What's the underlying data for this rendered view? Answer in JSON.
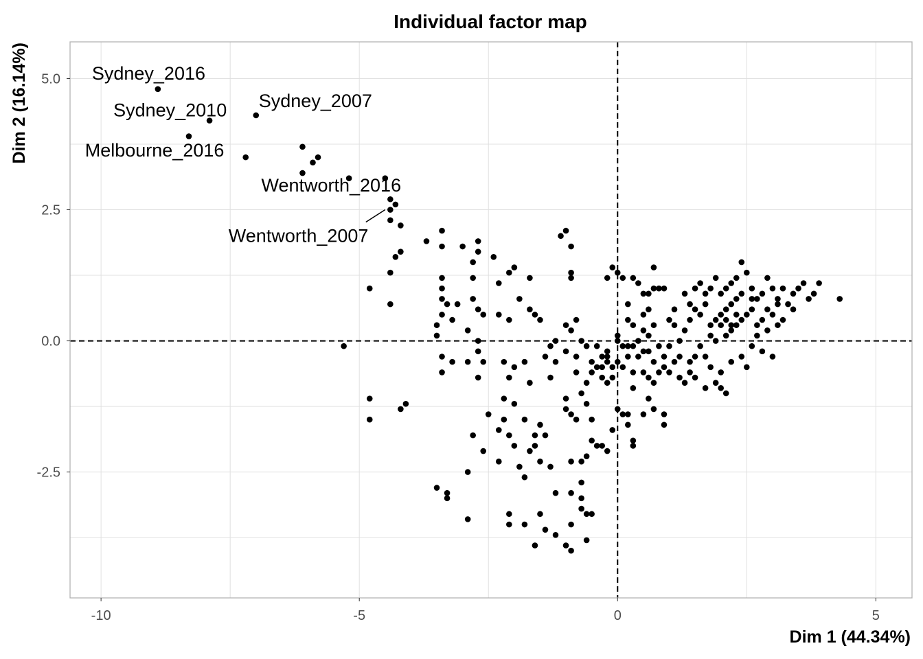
{
  "chart_data": {
    "type": "scatter",
    "title": "Individual factor map",
    "xlabel": "Dim 1 (44.34%)",
    "ylabel": "Dim 2 (16.14%)",
    "xlim": [
      -10.6,
      5.7
    ],
    "ylim": [
      -4.9,
      5.7
    ],
    "x_ticks": [
      -10,
      -5,
      0,
      5
    ],
    "x_tick_labels": [
      "-10",
      "-5",
      "0",
      "5"
    ],
    "y_ticks": [
      -2.5,
      0,
      2.5,
      5
    ],
    "y_tick_labels": [
      "-2.5",
      "0.0",
      "2.5",
      "5.0"
    ],
    "grid": true,
    "reference_lines": {
      "x": 0,
      "y": 0,
      "style": "dashed"
    },
    "point_color": "#000000",
    "labeled_points": [
      {
        "label": "Sydney_2016",
        "x": -8.9,
        "y": 4.8
      },
      {
        "label": "Sydney_2010",
        "x": -7.9,
        "y": 4.2
      },
      {
        "label": "Sydney_2007",
        "x": -7.0,
        "y": 4.3
      },
      {
        "label": "Melbourne_2016",
        "x": -7.2,
        "y": 3.5
      },
      {
        "label": "Wentworth_2016",
        "x": -6.1,
        "y": 3.2
      },
      {
        "label": "Wentworth_2007",
        "x": -4.5,
        "y": 2.5
      }
    ],
    "points": [
      [
        -8.9,
        4.8
      ],
      [
        -7.9,
        4.2
      ],
      [
        -7.0,
        4.3
      ],
      [
        -8.3,
        3.9
      ],
      [
        -7.2,
        3.5
      ],
      [
        -6.1,
        3.7
      ],
      [
        -5.8,
        3.5
      ],
      [
        -5.9,
        3.4
      ],
      [
        -6.1,
        3.2
      ],
      [
        -5.2,
        3.1
      ],
      [
        -4.5,
        3.1
      ],
      [
        -4.4,
        2.7
      ],
      [
        -4.3,
        2.6
      ],
      [
        -4.4,
        2.5
      ],
      [
        -4.4,
        2.3
      ],
      [
        -4.2,
        2.2
      ],
      [
        -3.7,
        1.9
      ],
      [
        -4.2,
        1.7
      ],
      [
        -4.3,
        1.6
      ],
      [
        -4.4,
        1.3
      ],
      [
        -4.8,
        1.0
      ],
      [
        -4.4,
        0.7
      ],
      [
        -5.3,
        -0.1
      ],
      [
        -3.4,
        2.1
      ],
      [
        -3.4,
        1.8
      ],
      [
        -3.4,
        1.2
      ],
      [
        -3.4,
        1.0
      ],
      [
        -3.4,
        0.8
      ],
      [
        -3.4,
        0.5
      ],
      [
        -3.5,
        0.3
      ],
      [
        -3.5,
        0.1
      ],
      [
        -3.3,
        0.7
      ],
      [
        -3.1,
        0.7
      ],
      [
        -3.2,
        0.4
      ],
      [
        -3.4,
        -0.3
      ],
      [
        -3.4,
        -0.6
      ],
      [
        -3.2,
        -0.4
      ],
      [
        -3.0,
        1.8
      ],
      [
        -2.7,
        1.9
      ],
      [
        -2.7,
        1.7
      ],
      [
        -2.8,
        1.5
      ],
      [
        -2.8,
        1.2
      ],
      [
        -2.8,
        0.8
      ],
      [
        -2.7,
        0.6
      ],
      [
        -2.6,
        0.5
      ],
      [
        -2.9,
        0.2
      ],
      [
        -2.7,
        0.0
      ],
      [
        -2.7,
        -0.2
      ],
      [
        -2.9,
        -0.4
      ],
      [
        -2.6,
        -0.4
      ],
      [
        -2.7,
        -0.7
      ],
      [
        -2.4,
        1.6
      ],
      [
        -2.3,
        1.1
      ],
      [
        -2.1,
        1.3
      ],
      [
        -2.0,
        1.4
      ],
      [
        -2.3,
        0.5
      ],
      [
        -2.1,
        0.4
      ],
      [
        -1.9,
        0.8
      ],
      [
        -1.7,
        1.2
      ],
      [
        -1.7,
        0.6
      ],
      [
        -1.6,
        0.5
      ],
      [
        -1.5,
        0.4
      ],
      [
        -2.2,
        -0.4
      ],
      [
        -2.0,
        -0.5
      ],
      [
        -2.1,
        -0.7
      ],
      [
        -1.8,
        -0.4
      ],
      [
        -1.7,
        -0.8
      ],
      [
        -1.4,
        -0.3
      ],
      [
        -1.3,
        -0.1
      ],
      [
        -1.3,
        -0.7
      ],
      [
        -1.2,
        -0.4
      ],
      [
        -1.0,
        0.3
      ],
      [
        -0.9,
        0.2
      ],
      [
        -0.8,
        0.4
      ],
      [
        -1.0,
        -0.2
      ],
      [
        -1.2,
        0.0
      ],
      [
        -0.8,
        -0.3
      ],
      [
        -0.8,
        -0.6
      ],
      [
        -1.0,
        2.1
      ],
      [
        -1.1,
        2.0
      ],
      [
        -0.9,
        1.8
      ],
      [
        -0.9,
        1.3
      ],
      [
        -0.9,
        1.2
      ],
      [
        -0.7,
        0.0
      ],
      [
        -0.6,
        -0.1
      ],
      [
        -0.5,
        -0.4
      ],
      [
        -0.5,
        -0.6
      ],
      [
        -0.4,
        -0.5
      ],
      [
        -0.3,
        -0.5
      ],
      [
        -0.3,
        -0.7
      ],
      [
        -0.2,
        -0.4
      ],
      [
        -0.2,
        -0.8
      ],
      [
        -0.6,
        -0.8
      ],
      [
        -0.7,
        -1.0
      ],
      [
        -0.6,
        -1.2
      ],
      [
        -0.8,
        -1.5
      ],
      [
        -1.0,
        -1.1
      ],
      [
        -1.0,
        -1.3
      ],
      [
        -0.9,
        -1.4
      ],
      [
        -0.5,
        -1.5
      ],
      [
        -0.5,
        -1.9
      ],
      [
        -0.4,
        -2.0
      ],
      [
        -0.6,
        -2.2
      ],
      [
        -0.7,
        -2.3
      ],
      [
        -0.9,
        -2.3
      ],
      [
        -0.3,
        -2.0
      ],
      [
        -0.2,
        -2.1
      ],
      [
        -0.9,
        -2.9
      ],
      [
        -0.7,
        -2.7
      ],
      [
        -0.7,
        -3.0
      ],
      [
        -0.7,
        -3.2
      ],
      [
        -0.6,
        -3.3
      ],
      [
        -0.5,
        -3.3
      ],
      [
        -0.9,
        -3.5
      ],
      [
        -1.2,
        -3.7
      ],
      [
        -1.0,
        -3.9
      ],
      [
        -0.9,
        -4.0
      ],
      [
        -0.6,
        -3.8
      ],
      [
        -1.2,
        -2.9
      ],
      [
        -1.5,
        -3.3
      ],
      [
        -1.4,
        -3.6
      ],
      [
        -1.6,
        -3.9
      ],
      [
        -1.8,
        -3.5
      ],
      [
        -2.1,
        -3.3
      ],
      [
        -2.1,
        -3.5
      ],
      [
        -1.8,
        -2.6
      ],
      [
        -1.9,
        -2.4
      ],
      [
        -1.7,
        -2.1
      ],
      [
        -1.6,
        -2.0
      ],
      [
        -1.5,
        -2.3
      ],
      [
        -1.3,
        -2.4
      ],
      [
        -2.0,
        -2.0
      ],
      [
        -2.1,
        -1.8
      ],
      [
        -2.3,
        -1.7
      ],
      [
        -2.2,
        -1.5
      ],
      [
        -2.2,
        -1.1
      ],
      [
        -2.0,
        -1.2
      ],
      [
        -1.8,
        -1.5
      ],
      [
        -1.5,
        -1.6
      ],
      [
        -1.4,
        -1.8
      ],
      [
        -1.6,
        -1.8
      ],
      [
        -2.3,
        -2.3
      ],
      [
        -2.6,
        -2.1
      ],
      [
        -2.5,
        -1.4
      ],
      [
        -2.8,
        -1.8
      ],
      [
        -2.9,
        -2.5
      ],
      [
        -2.9,
        -3.4
      ],
      [
        -3.3,
        -2.9
      ],
      [
        -3.3,
        -3.0
      ],
      [
        -3.5,
        -2.8
      ],
      [
        -4.2,
        -1.3
      ],
      [
        -4.1,
        -1.2
      ],
      [
        -4.8,
        -1.1
      ],
      [
        -4.8,
        -1.5
      ],
      [
        -0.1,
        1.4
      ],
      [
        0.0,
        1.3
      ],
      [
        0.1,
        1.2
      ],
      [
        -0.2,
        1.2
      ],
      [
        0.3,
        1.2
      ],
      [
        0.4,
        1.1
      ],
      [
        0.5,
        0.9
      ],
      [
        0.6,
        0.9
      ],
      [
        0.7,
        1.0
      ],
      [
        0.7,
        1.4
      ],
      [
        0.8,
        1.0
      ],
      [
        0.9,
        1.0
      ],
      [
        0.2,
        0.7
      ],
      [
        0.2,
        0.4
      ],
      [
        0.3,
        0.3
      ],
      [
        0.5,
        0.5
      ],
      [
        0.6,
        0.6
      ],
      [
        0.7,
        0.3
      ],
      [
        0.5,
        0.2
      ],
      [
        0.0,
        0.1
      ],
      [
        0.0,
        0.0
      ],
      [
        0.1,
        -0.1
      ],
      [
        0.2,
        -0.1
      ],
      [
        -0.2,
        -0.3
      ],
      [
        0.0,
        -0.4
      ],
      [
        0.1,
        -0.5
      ],
      [
        0.2,
        -0.3
      ],
      [
        0.3,
        -0.1
      ],
      [
        0.4,
        -0.3
      ],
      [
        0.6,
        -0.2
      ],
      [
        0.7,
        -0.4
      ],
      [
        0.8,
        -0.1
      ],
      [
        0.9,
        -0.3
      ],
      [
        1.0,
        -0.6
      ],
      [
        1.2,
        -0.7
      ],
      [
        1.3,
        -0.8
      ],
      [
        1.4,
        -0.6
      ],
      [
        1.5,
        -0.7
      ],
      [
        0.5,
        -0.6
      ],
      [
        0.6,
        -0.7
      ],
      [
        0.7,
        -0.8
      ],
      [
        0.3,
        -0.9
      ],
      [
        0.0,
        -1.3
      ],
      [
        0.1,
        -1.4
      ],
      [
        0.2,
        -1.4
      ],
      [
        -0.1,
        -1.7
      ],
      [
        0.2,
        -1.6
      ],
      [
        0.3,
        -1.9
      ],
      [
        0.3,
        -2.0
      ],
      [
        0.5,
        -1.4
      ],
      [
        0.6,
        -1.1
      ],
      [
        0.7,
        -1.3
      ],
      [
        0.9,
        -1.4
      ],
      [
        0.9,
        -1.6
      ],
      [
        -0.1,
        -0.7
      ],
      [
        1.0,
        0.4
      ],
      [
        1.1,
        0.3
      ],
      [
        1.2,
        0.0
      ],
      [
        1.3,
        0.2
      ],
      [
        1.4,
        0.4
      ],
      [
        1.5,
        0.6
      ],
      [
        1.6,
        0.5
      ],
      [
        1.7,
        0.7
      ],
      [
        1.8,
        0.3
      ],
      [
        1.9,
        0.4
      ],
      [
        2.0,
        0.5
      ],
      [
        2.1,
        0.6
      ],
      [
        2.2,
        0.7
      ],
      [
        2.3,
        0.8
      ],
      [
        1.1,
        0.6
      ],
      [
        1.3,
        0.9
      ],
      [
        1.4,
        0.7
      ],
      [
        1.5,
        1.0
      ],
      [
        1.6,
        1.1
      ],
      [
        1.7,
        0.9
      ],
      [
        1.8,
        1.0
      ],
      [
        1.9,
        1.2
      ],
      [
        2.0,
        0.9
      ],
      [
        2.1,
        1.0
      ],
      [
        2.2,
        1.1
      ],
      [
        2.3,
        1.2
      ],
      [
        2.4,
        1.5
      ],
      [
        2.5,
        1.3
      ],
      [
        2.6,
        1.0
      ],
      [
        2.7,
        0.8
      ],
      [
        2.8,
        0.9
      ],
      [
        2.9,
        1.2
      ],
      [
        3.0,
        1.0
      ],
      [
        3.1,
        0.8
      ],
      [
        3.2,
        1.0
      ],
      [
        3.3,
        0.7
      ],
      [
        3.4,
        0.9
      ],
      [
        3.5,
        1.0
      ],
      [
        3.6,
        1.1
      ],
      [
        3.7,
        0.8
      ],
      [
        3.8,
        0.9
      ],
      [
        3.9,
        1.1
      ],
      [
        4.3,
        0.8
      ],
      [
        2.4,
        0.4
      ],
      [
        2.5,
        0.5
      ],
      [
        2.6,
        0.6
      ],
      [
        2.7,
        0.3
      ],
      [
        2.8,
        0.4
      ],
      [
        2.9,
        0.6
      ],
      [
        3.0,
        0.5
      ],
      [
        3.1,
        0.3
      ],
      [
        3.2,
        0.4
      ],
      [
        2.2,
        0.2
      ],
      [
        2.1,
        0.1
      ],
      [
        2.0,
        0.3
      ],
      [
        1.9,
        0.0
      ],
      [
        1.8,
        0.1
      ],
      [
        1.6,
        -0.1
      ],
      [
        1.7,
        -0.3
      ],
      [
        1.5,
        -0.3
      ],
      [
        1.4,
        -0.4
      ],
      [
        1.8,
        -0.5
      ],
      [
        2.0,
        -0.6
      ],
      [
        2.2,
        -0.4
      ],
      [
        2.4,
        -0.3
      ],
      [
        2.6,
        -0.1
      ],
      [
        2.8,
        -0.2
      ],
      [
        3.0,
        -0.3
      ],
      [
        2.5,
        -0.5
      ],
      [
        1.9,
        -0.8
      ],
      [
        2.0,
        -0.9
      ],
      [
        2.1,
        -1.0
      ],
      [
        1.7,
        -0.9
      ],
      [
        3.1,
        0.7
      ],
      [
        3.4,
        0.6
      ],
      [
        2.9,
        0.2
      ],
      [
        2.7,
        0.1
      ],
      [
        2.3,
        0.3
      ],
      [
        2.4,
        0.9
      ],
      [
        2.6,
        0.8
      ],
      [
        2.3,
        0.5
      ],
      [
        2.2,
        0.3
      ],
      [
        2.1,
        0.4
      ],
      [
        0.4,
        0.0
      ],
      [
        0.5,
        -0.2
      ],
      [
        0.8,
        -0.6
      ],
      [
        0.9,
        -0.5
      ],
      [
        1.1,
        -0.4
      ],
      [
        1.2,
        -0.3
      ],
      [
        1.0,
        -0.1
      ],
      [
        0.6,
        0.1
      ],
      [
        0.3,
        -0.6
      ],
      [
        -0.2,
        -0.2
      ],
      [
        -0.1,
        -0.5
      ],
      [
        -0.3,
        -0.3
      ],
      [
        -0.4,
        -0.1
      ]
    ]
  }
}
